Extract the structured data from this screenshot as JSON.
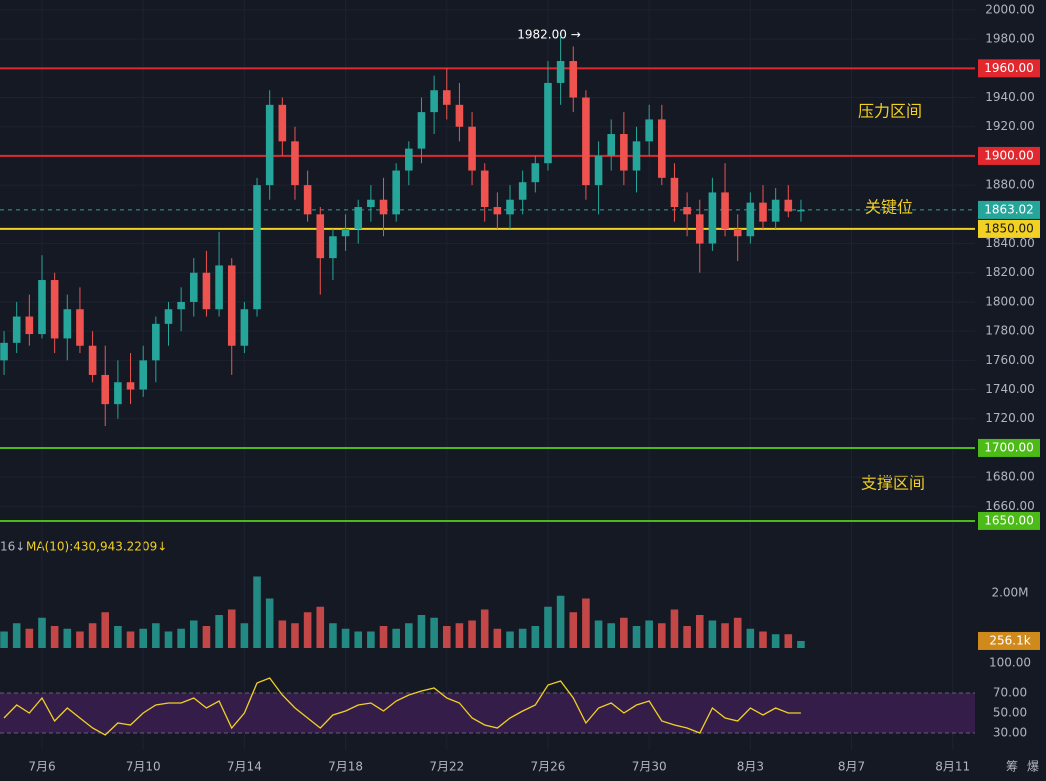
{
  "chart_data": {
    "type": "candlestick",
    "up_color": "#26a69a",
    "down_color": "#ef5350",
    "xlim": [
      4.34,
      42.88
    ],
    "xticks": [
      {
        "value": 6,
        "label": "7月6"
      },
      {
        "value": 10,
        "label": "7月10"
      },
      {
        "value": 14,
        "label": "7月14"
      },
      {
        "value": 18,
        "label": "7月18"
      },
      {
        "value": 22,
        "label": "7月22"
      },
      {
        "value": 26,
        "label": "7月26"
      },
      {
        "value": 30,
        "label": "7月30"
      },
      {
        "value": 34,
        "label": "8月3"
      },
      {
        "value": 38,
        "label": "8月7"
      },
      {
        "value": 42,
        "label": "8月11"
      }
    ],
    "ylim": [
      1643.8,
      2006.8
    ],
    "yticks": [
      {
        "value": 1660,
        "label": "1660.00"
      },
      {
        "value": 1680,
        "label": "1680.00"
      },
      {
        "value": 1720,
        "label": "1720.00"
      },
      {
        "value": 1740,
        "label": "1740.00"
      },
      {
        "value": 1760,
        "label": "1760.00"
      },
      {
        "value": 1780,
        "label": "1780.00"
      },
      {
        "value": 1800,
        "label": "1800.00"
      },
      {
        "value": 1820,
        "label": "1820.00"
      },
      {
        "value": 1840,
        "label": "1840.00"
      },
      {
        "value": 1880,
        "label": "1880.00"
      },
      {
        "value": 1920,
        "label": "1920.00"
      },
      {
        "value": 1940,
        "label": "1940.00"
      },
      {
        "value": 1980,
        "label": "1980.00"
      },
      {
        "value": 2000,
        "label": "2000.00"
      }
    ],
    "grid": true,
    "x": [
      4.5,
      5,
      5.5,
      6,
      6.5,
      7,
      7.5,
      8,
      8.5,
      9,
      9.5,
      10,
      10.5,
      11,
      11.5,
      12,
      12.5,
      13,
      13.5,
      14,
      14.5,
      15,
      15.5,
      16,
      16.5,
      17,
      17.5,
      18,
      18.5,
      19,
      19.5,
      20,
      20.5,
      21,
      21.5,
      22,
      22.5,
      23,
      23.5,
      24,
      24.5,
      25,
      25.5,
      26,
      26.5,
      27,
      27.5,
      28,
      28.5,
      29,
      29.5,
      30,
      30.5,
      31,
      31.5,
      32,
      32.5,
      33,
      33.5,
      34,
      34.5,
      35,
      35.5,
      36
    ],
    "ohlc": [
      [
        1760,
        1780,
        1750,
        1772
      ],
      [
        1772,
        1800,
        1765,
        1790
      ],
      [
        1790,
        1805,
        1770,
        1778
      ],
      [
        1778,
        1832,
        1775,
        1815
      ],
      [
        1815,
        1820,
        1765,
        1775
      ],
      [
        1775,
        1805,
        1760,
        1795
      ],
      [
        1795,
        1810,
        1765,
        1770
      ],
      [
        1770,
        1780,
        1745,
        1750
      ],
      [
        1750,
        1770,
        1715,
        1730
      ],
      [
        1730,
        1760,
        1720,
        1745
      ],
      [
        1745,
        1765,
        1730,
        1740
      ],
      [
        1740,
        1770,
        1735,
        1760
      ],
      [
        1760,
        1790,
        1745,
        1785
      ],
      [
        1785,
        1800,
        1770,
        1795
      ],
      [
        1795,
        1810,
        1780,
        1800
      ],
      [
        1800,
        1830,
        1790,
        1820
      ],
      [
        1820,
        1835,
        1790,
        1795
      ],
      [
        1795,
        1848,
        1790,
        1825
      ],
      [
        1825,
        1830,
        1750,
        1770
      ],
      [
        1770,
        1800,
        1765,
        1795
      ],
      [
        1795,
        1885,
        1790,
        1880
      ],
      [
        1880,
        1945,
        1870,
        1935
      ],
      [
        1935,
        1940,
        1900,
        1910
      ],
      [
        1910,
        1920,
        1870,
        1880
      ],
      [
        1880,
        1890,
        1855,
        1860
      ],
      [
        1860,
        1865,
        1805,
        1830
      ],
      [
        1830,
        1850,
        1815,
        1845
      ],
      [
        1845,
        1860,
        1835,
        1850
      ],
      [
        1850,
        1870,
        1840,
        1865
      ],
      [
        1865,
        1880,
        1855,
        1870
      ],
      [
        1870,
        1885,
        1845,
        1860
      ],
      [
        1860,
        1895,
        1855,
        1890
      ],
      [
        1890,
        1910,
        1880,
        1905
      ],
      [
        1905,
        1940,
        1895,
        1930
      ],
      [
        1930,
        1955,
        1915,
        1945
      ],
      [
        1945,
        1960,
        1925,
        1935
      ],
      [
        1935,
        1950,
        1910,
        1920
      ],
      [
        1920,
        1930,
        1880,
        1890
      ],
      [
        1890,
        1895,
        1855,
        1865
      ],
      [
        1865,
        1875,
        1850,
        1860
      ],
      [
        1860,
        1880,
        1850,
        1870
      ],
      [
        1870,
        1890,
        1860,
        1882
      ],
      [
        1882,
        1900,
        1875,
        1895
      ],
      [
        1895,
        1965,
        1890,
        1950
      ],
      [
        1950,
        1982,
        1935,
        1965
      ],
      [
        1965,
        1975,
        1930,
        1940
      ],
      [
        1940,
        1945,
        1870,
        1880
      ],
      [
        1880,
        1910,
        1860,
        1900
      ],
      [
        1900,
        1925,
        1890,
        1915
      ],
      [
        1915,
        1930,
        1880,
        1890
      ],
      [
        1890,
        1920,
        1875,
        1910
      ],
      [
        1910,
        1935,
        1900,
        1925
      ],
      [
        1925,
        1935,
        1880,
        1885
      ],
      [
        1885,
        1895,
        1855,
        1865
      ],
      [
        1865,
        1875,
        1845,
        1860
      ],
      [
        1860,
        1870,
        1820,
        1840
      ],
      [
        1840,
        1885,
        1835,
        1875
      ],
      [
        1875,
        1895,
        1845,
        1850
      ],
      [
        1850,
        1860,
        1828,
        1845
      ],
      [
        1845,
        1875,
        1840,
        1868
      ],
      [
        1868,
        1880,
        1850,
        1855
      ],
      [
        1855,
        1878,
        1850,
        1870
      ],
      [
        1870,
        1880,
        1858,
        1862
      ],
      [
        1862,
        1870,
        1855,
        1863.02
      ]
    ],
    "levels": [
      {
        "value": 1960,
        "label": "1960.00",
        "color": "#e0282e",
        "label_color": "#ffffff"
      },
      {
        "value": 1900,
        "label": "1900.00",
        "color": "#e0282e",
        "label_color": "#ffffff"
      },
      {
        "value": 1863.02,
        "label": "1863.02",
        "color": "#26a69a",
        "label_color": "#ffffff",
        "dashed": true
      },
      {
        "value": 1850,
        "label": "1850.00",
        "color": "#f2d024",
        "label_color": "#1a1a1a"
      },
      {
        "value": 1700,
        "label": "1700.00",
        "color": "#4cbb17",
        "label_color": "#ffffff"
      },
      {
        "value": 1650,
        "label": "1650.00",
        "color": "#4cbb17",
        "label_color": "#ffffff"
      }
    ],
    "zones": [
      "压力区间",
      "关键位",
      "支撑区间"
    ],
    "high_label": "1982.00 →",
    "volume_left_label": "16↓",
    "volume_ma_label": "MA(10):430,943.2209↓",
    "volume_ylim": [
      0,
      2800000
    ],
    "volume_yticks": [
      {
        "value": 2000000,
        "label": "2.00M"
      }
    ],
    "volume": [
      600000,
      900000,
      700000,
      1100000,
      800000,
      700000,
      600000,
      900000,
      1300000,
      800000,
      600000,
      700000,
      900000,
      600000,
      700000,
      1000000,
      800000,
      1200000,
      1400000,
      900000,
      2600000,
      1800000,
      1000000,
      900000,
      1300000,
      1500000,
      900000,
      700000,
      600000,
      600000,
      800000,
      700000,
      900000,
      1200000,
      1100000,
      800000,
      900000,
      1000000,
      1400000,
      700000,
      600000,
      700000,
      800000,
      1500000,
      1900000,
      1300000,
      1800000,
      1000000,
      900000,
      1100000,
      800000,
      1000000,
      900000,
      1400000,
      800000,
      1200000,
      1000000,
      900000,
      1100000,
      700000,
      600000,
      500000,
      500000,
      256100
    ],
    "volume_current": {
      "value": 256100,
      "label": "256.1k",
      "color": "#d08a1c"
    },
    "rsi_ylim": [
      18,
      100
    ],
    "rsi_yticks": [
      {
        "value": 100,
        "label": "100.00"
      },
      {
        "value": 70,
        "label": "70.00"
      },
      {
        "value": 50,
        "label": "50.00"
      },
      {
        "value": 30,
        "label": "30.00"
      }
    ],
    "rsi_band": [
      30,
      70
    ],
    "rsi_color": "#f2d024",
    "rsi": [
      45,
      58,
      50,
      65,
      42,
      55,
      45,
      35,
      28,
      40,
      38,
      50,
      58,
      60,
      60,
      65,
      55,
      62,
      35,
      50,
      80,
      85,
      68,
      55,
      45,
      35,
      48,
      52,
      58,
      60,
      52,
      62,
      68,
      72,
      75,
      65,
      60,
      45,
      38,
      35,
      45,
      52,
      58,
      78,
      82,
      65,
      40,
      55,
      60,
      50,
      58,
      62,
      42,
      38,
      35,
      30,
      55,
      45,
      42,
      55,
      48,
      55,
      50,
      50
    ],
    "toolbar": [
      "筹",
      "爆"
    ]
  }
}
